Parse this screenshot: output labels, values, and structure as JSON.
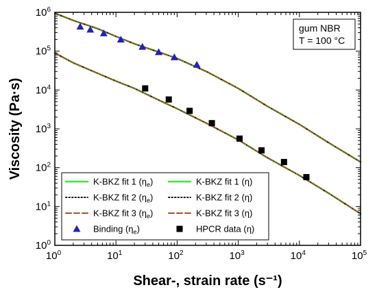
{
  "chart_data": {
    "type": "line",
    "x_scale": "log",
    "y_scale": "log",
    "xlim": [
      1,
      100000
    ],
    "ylim": [
      1,
      1000000
    ],
    "xlabel": "Shear-, strain rate (s⁻¹)",
    "ylabel": "Viscosity (Pa·s)",
    "x_ticks": [
      {
        "base": "10",
        "exp": "0"
      },
      {
        "base": "10",
        "exp": "1"
      },
      {
        "base": "10",
        "exp": "2"
      },
      {
        "base": "10",
        "exp": "3"
      },
      {
        "base": "10",
        "exp": "4"
      },
      {
        "base": "10",
        "exp": "5"
      }
    ],
    "y_ticks": [
      {
        "base": "10",
        "exp": "0"
      },
      {
        "base": "10",
        "exp": "1"
      },
      {
        "base": "10",
        "exp": "2"
      },
      {
        "base": "10",
        "exp": "3"
      },
      {
        "base": "10",
        "exp": "4"
      },
      {
        "base": "10",
        "exp": "5"
      },
      {
        "base": "10",
        "exp": "6"
      }
    ],
    "annotation": [
      "gum NBR",
      "T = 100 °C"
    ],
    "legend_position": "bottom-left",
    "grid": false,
    "series": [
      {
        "name": "K-BKZ fit 1 (ηe)",
        "color": "#33ee33",
        "style": "solid",
        "x": [
          1,
          2,
          5,
          10,
          20,
          50,
          100,
          300,
          1000,
          3000,
          10000,
          30000,
          100000
        ],
        "y": [
          950000,
          620000,
          380000,
          240000,
          155000,
          95000,
          65000,
          30000,
          11000,
          3800,
          1300,
          440,
          140
        ]
      },
      {
        "name": "K-BKZ fit 2 (ηe)",
        "color": "#111111",
        "style": "dotted",
        "x": [
          1,
          2,
          5,
          10,
          20,
          50,
          100,
          300,
          1000,
          3000,
          10000,
          30000,
          100000
        ],
        "y": [
          950000,
          620000,
          380000,
          240000,
          155000,
          95000,
          65000,
          30000,
          11000,
          3800,
          1300,
          440,
          140
        ]
      },
      {
        "name": "K-BKZ fit 3 (ηe)",
        "color": "#a0522d",
        "style": "dashed",
        "x": [
          1,
          2,
          5,
          10,
          20,
          50,
          100,
          300,
          1000,
          3000,
          10000,
          30000,
          100000
        ],
        "y": [
          950000,
          620000,
          380000,
          240000,
          155000,
          95000,
          65000,
          30000,
          11000,
          3800,
          1300,
          440,
          140
        ]
      },
      {
        "name": "K-BKZ fit 1 (η)",
        "color": "#33ee33",
        "style": "solid",
        "x": [
          1,
          2,
          5,
          10,
          20,
          50,
          100,
          300,
          1000,
          3000,
          10000,
          30000,
          100000
        ],
        "y": [
          90000,
          50000,
          27000,
          17000,
          11000,
          5500,
          3300,
          1400,
          520,
          180,
          63,
          22,
          6.5
        ]
      },
      {
        "name": "K-BKZ fit 2 (η)",
        "color": "#111111",
        "style": "dotted",
        "x": [
          1,
          2,
          5,
          10,
          20,
          50,
          100,
          300,
          1000,
          3000,
          10000,
          30000,
          100000
        ],
        "y": [
          90000,
          50000,
          27000,
          17000,
          11000,
          5500,
          3300,
          1400,
          520,
          180,
          63,
          22,
          6.5
        ]
      },
      {
        "name": "K-BKZ fit 3 (η)",
        "color": "#a0522d",
        "style": "dashed",
        "x": [
          1,
          2,
          5,
          10,
          20,
          50,
          100,
          300,
          1000,
          3000,
          10000,
          30000,
          100000
        ],
        "y": [
          90000,
          50000,
          27000,
          17000,
          11000,
          5500,
          3300,
          1400,
          520,
          180,
          63,
          22,
          6.5
        ]
      },
      {
        "name": "Binding (ηe)",
        "color": "#2222bb",
        "marker": "triangle",
        "x": [
          2.6,
          3.8,
          6.3,
          12,
          27,
          50,
          90,
          210
        ],
        "y": [
          430000,
          360000,
          290000,
          200000,
          130000,
          95000,
          70000,
          45000
        ]
      },
      {
        "name": "HPCR data (η)",
        "color": "#000000",
        "marker": "square",
        "x": [
          30,
          73,
          160,
          370,
          1050,
          2400,
          5600,
          13000
        ],
        "y": [
          11000,
          5700,
          2900,
          1400,
          560,
          280,
          140,
          57
        ]
      }
    ],
    "legend": [
      {
        "label": "K-BKZ fit 1 (η",
        "sub": "e",
        "close": ")",
        "color": "#33ee33",
        "style": "solid"
      },
      {
        "label": "K-BKZ fit 1 (η)",
        "sub": "",
        "close": "",
        "color": "#33ee33",
        "style": "solid"
      },
      {
        "label": "K-BKZ fit 2 (η",
        "sub": "e",
        "close": ")",
        "color": "#111111",
        "style": "dotted"
      },
      {
        "label": "K-BKZ fit 2 (η)",
        "sub": "",
        "close": "",
        "color": "#111111",
        "style": "dotted"
      },
      {
        "label": "K-BKZ fit 3 (η",
        "sub": "e",
        "close": ")",
        "color": "#a0522d",
        "style": "dashed"
      },
      {
        "label": "K-BKZ fit 3 (η)",
        "sub": "",
        "close": "",
        "color": "#a0522d",
        "style": "dashed"
      },
      {
        "label": "Binding (η",
        "sub": "e",
        "close": ")",
        "color": "#2222bb",
        "marker": "triangle"
      },
      {
        "label": "HPCR data (η)",
        "sub": "",
        "close": "",
        "color": "#000000",
        "marker": "square"
      }
    ]
  }
}
